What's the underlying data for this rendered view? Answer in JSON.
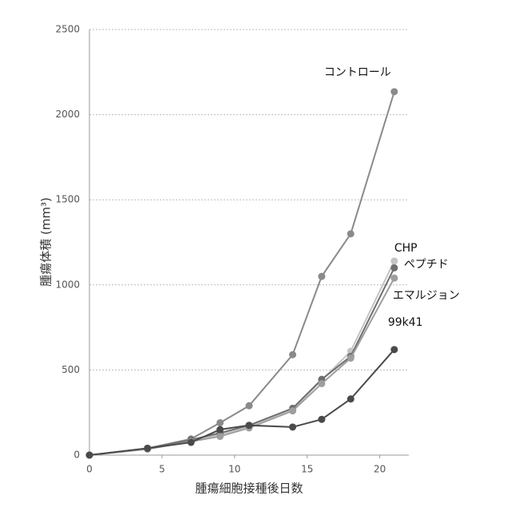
{
  "chart_data": {
    "type": "line",
    "x_label": "腫瘍細胞接種後日数",
    "y_label": "腫瘍体積 (mm³)",
    "x": [
      0,
      4,
      7,
      9,
      11,
      14,
      16,
      18,
      21
    ],
    "xlim": [
      0,
      22
    ],
    "xticks": [
      0,
      5,
      10,
      15,
      20
    ],
    "ylim": [
      0,
      2500
    ],
    "yticks": [
      0,
      500,
      1000,
      1500,
      2000,
      2500
    ],
    "grid": true,
    "series": [
      {
        "name": "コントロール",
        "color": "#8a8a8a",
        "values": [
          0,
          40,
          95,
          190,
          290,
          590,
          1050,
          1300,
          2135
        ]
      },
      {
        "name": "CHP",
        "color": "#c4c4c4",
        "values": [
          0,
          40,
          85,
          120,
          170,
          270,
          440,
          610,
          1140
        ]
      },
      {
        "name": "ペプチド",
        "color": "#6e6e6e",
        "values": [
          0,
          40,
          90,
          130,
          175,
          275,
          445,
          580,
          1100
        ]
      },
      {
        "name": "エマルジョン",
        "color": "#9e9e9e",
        "values": [
          0,
          35,
          80,
          110,
          160,
          260,
          420,
          570,
          1040
        ]
      },
      {
        "name": "99k41",
        "color": "#4a4a4a",
        "values": [
          0,
          40,
          75,
          150,
          175,
          165,
          210,
          330,
          620
        ]
      }
    ]
  }
}
